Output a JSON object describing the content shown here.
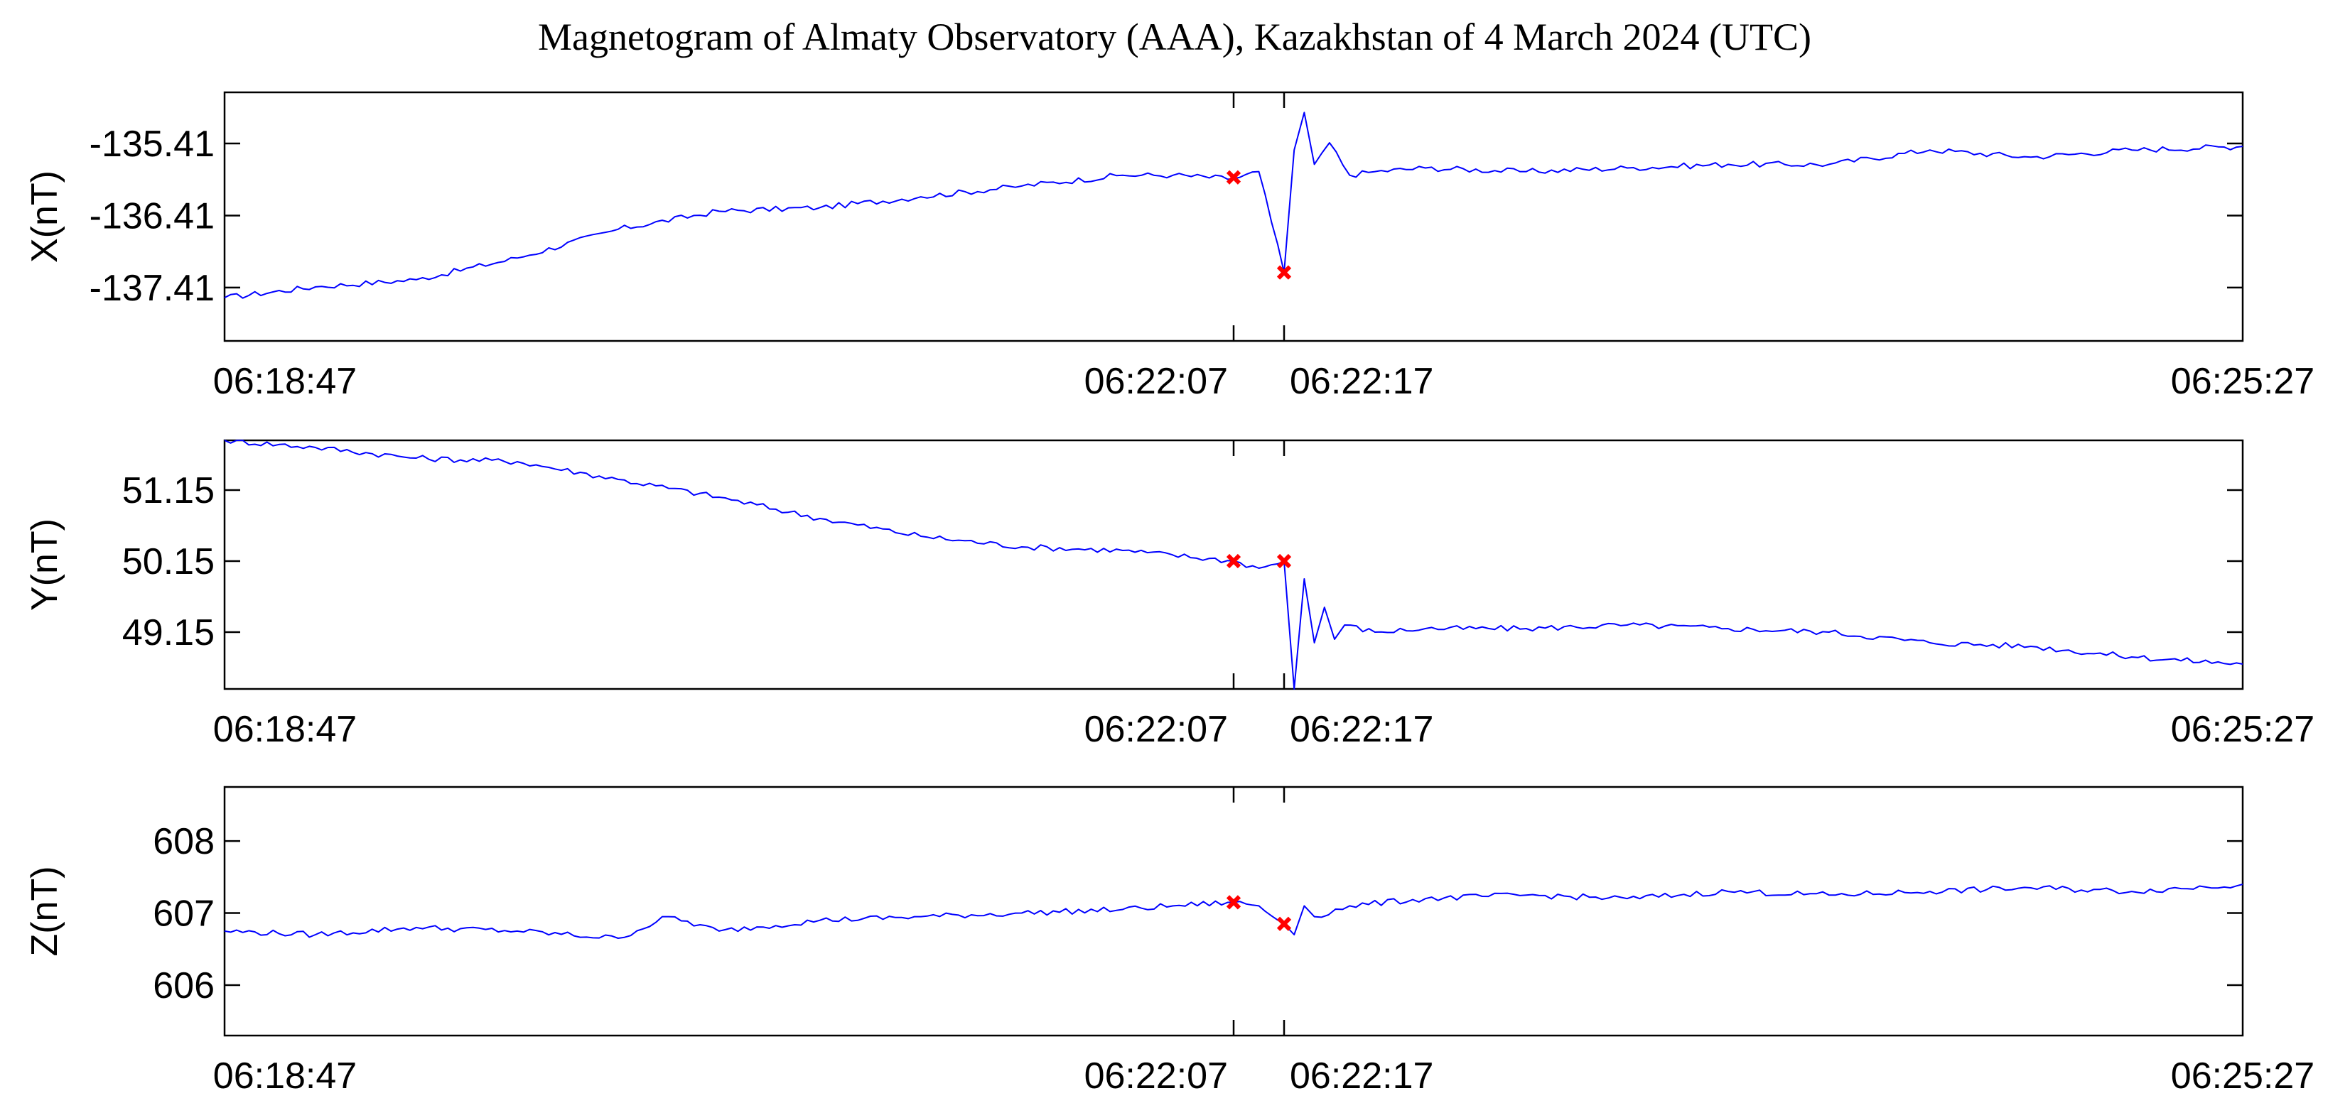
{
  "title": "Magnetogram of Almaty Observatory (AAA), Kazakhstan of 4 March 2024 (UTC)",
  "colors": {
    "line": "#0000ff",
    "marker": "#ff0000",
    "axis": "#000000"
  },
  "chart_data": [
    {
      "type": "line",
      "ylabel": "X(nT)",
      "x_ticks": [
        "06:18:47",
        "06:22:07",
        "06:22:17",
        "06:25:27"
      ],
      "y_ticks": [
        -135.41,
        -136.41,
        -137.41
      ],
      "ylim": [
        -138.15,
        -134.7
      ],
      "grid": false,
      "series": [
        {
          "x": [
            "06:18:47",
            "06:19:05",
            "06:19:25",
            "06:19:45",
            "06:20:05",
            "06:20:25",
            "06:20:45",
            "06:21:05",
            "06:21:25",
            "06:21:45",
            "06:21:55",
            "06:22:07",
            "06:22:12",
            "06:22:17",
            "06:22:19",
            "06:22:21",
            "06:22:23",
            "06:22:26",
            "06:22:30",
            "06:22:35",
            "06:22:45",
            "06:23:05",
            "06:23:25",
            "06:23:45",
            "06:24:05",
            "06:24:25",
            "06:24:45",
            "06:25:05",
            "06:25:27"
          ],
          "values": [
            -137.55,
            -137.4,
            -137.3,
            -137.0,
            -136.6,
            -136.35,
            -136.3,
            -136.15,
            -136.0,
            -135.85,
            -135.85,
            -135.9,
            -135.8,
            -137.2,
            -135.5,
            -134.98,
            -135.7,
            -135.4,
            -135.85,
            -135.8,
            -135.75,
            -135.8,
            -135.75,
            -135.7,
            -135.7,
            -135.5,
            -135.6,
            -135.5,
            -135.45
          ]
        }
      ],
      "markers": [
        {
          "x": "06:22:07",
          "value": -135.88
        },
        {
          "x": "06:22:17",
          "value": -137.2
        }
      ]
    },
    {
      "type": "line",
      "ylabel": "Y(nT)",
      "x_ticks": [
        "06:18:47",
        "06:22:07",
        "06:22:17",
        "06:25:27"
      ],
      "y_ticks": [
        51.15,
        50.15,
        49.15
      ],
      "ylim": [
        48.35,
        51.85
      ],
      "grid": false,
      "series": [
        {
          "x": [
            "06:18:47",
            "06:19:05",
            "06:19:25",
            "06:19:45",
            "06:20:05",
            "06:20:25",
            "06:20:45",
            "06:21:05",
            "06:21:25",
            "06:21:45",
            "06:22:07",
            "06:22:12",
            "06:22:17",
            "06:22:19",
            "06:22:21",
            "06:22:23",
            "06:22:25",
            "06:22:27",
            "06:22:29",
            "06:22:35",
            "06:22:45",
            "06:23:05",
            "06:23:25",
            "06:23:45",
            "06:24:05",
            "06:24:25",
            "06:24:45",
            "06:25:05",
            "06:25:27"
          ],
          "values": [
            51.85,
            51.75,
            51.6,
            51.55,
            51.3,
            51.05,
            50.75,
            50.5,
            50.35,
            50.3,
            50.15,
            50.05,
            50.15,
            48.35,
            49.9,
            49.0,
            49.5,
            49.05,
            49.25,
            49.15,
            49.2,
            49.2,
            49.25,
            49.2,
            49.15,
            49.0,
            48.95,
            48.8,
            48.7
          ]
        }
      ],
      "markers": [
        {
          "x": "06:22:07",
          "value": 50.15
        },
        {
          "x": "06:22:17",
          "value": 50.15
        }
      ]
    },
    {
      "type": "line",
      "ylabel": "Z(nT)",
      "x_ticks": [
        "06:18:47",
        "06:22:07",
        "06:22:17",
        "06:25:27"
      ],
      "y_ticks": [
        608,
        607,
        606
      ],
      "ylim": [
        605.3,
        608.75
      ],
      "grid": false,
      "series": [
        {
          "x": [
            "06:18:47",
            "06:19:05",
            "06:19:25",
            "06:19:45",
            "06:20:05",
            "06:20:15",
            "06:20:25",
            "06:20:45",
            "06:21:05",
            "06:21:25",
            "06:21:45",
            "06:21:55",
            "06:22:07",
            "06:22:12",
            "06:22:17",
            "06:22:19",
            "06:22:21",
            "06:22:23",
            "06:22:30",
            "06:22:45",
            "06:23:05",
            "06:23:25",
            "06:23:45",
            "06:24:05",
            "06:24:25",
            "06:24:45",
            "06:25:05",
            "06:25:27"
          ],
          "values": [
            606.75,
            606.7,
            606.8,
            606.75,
            606.65,
            606.95,
            606.75,
            606.9,
            606.95,
            607.0,
            607.05,
            607.1,
            607.15,
            607.1,
            606.85,
            606.7,
            607.1,
            606.95,
            607.1,
            607.2,
            607.25,
            607.2,
            607.3,
            607.25,
            607.3,
            607.35,
            607.3,
            607.4
          ]
        }
      ],
      "markers": [
        {
          "x": "06:22:07",
          "value": 607.15
        },
        {
          "x": "06:22:17",
          "value": 606.85
        }
      ]
    }
  ]
}
